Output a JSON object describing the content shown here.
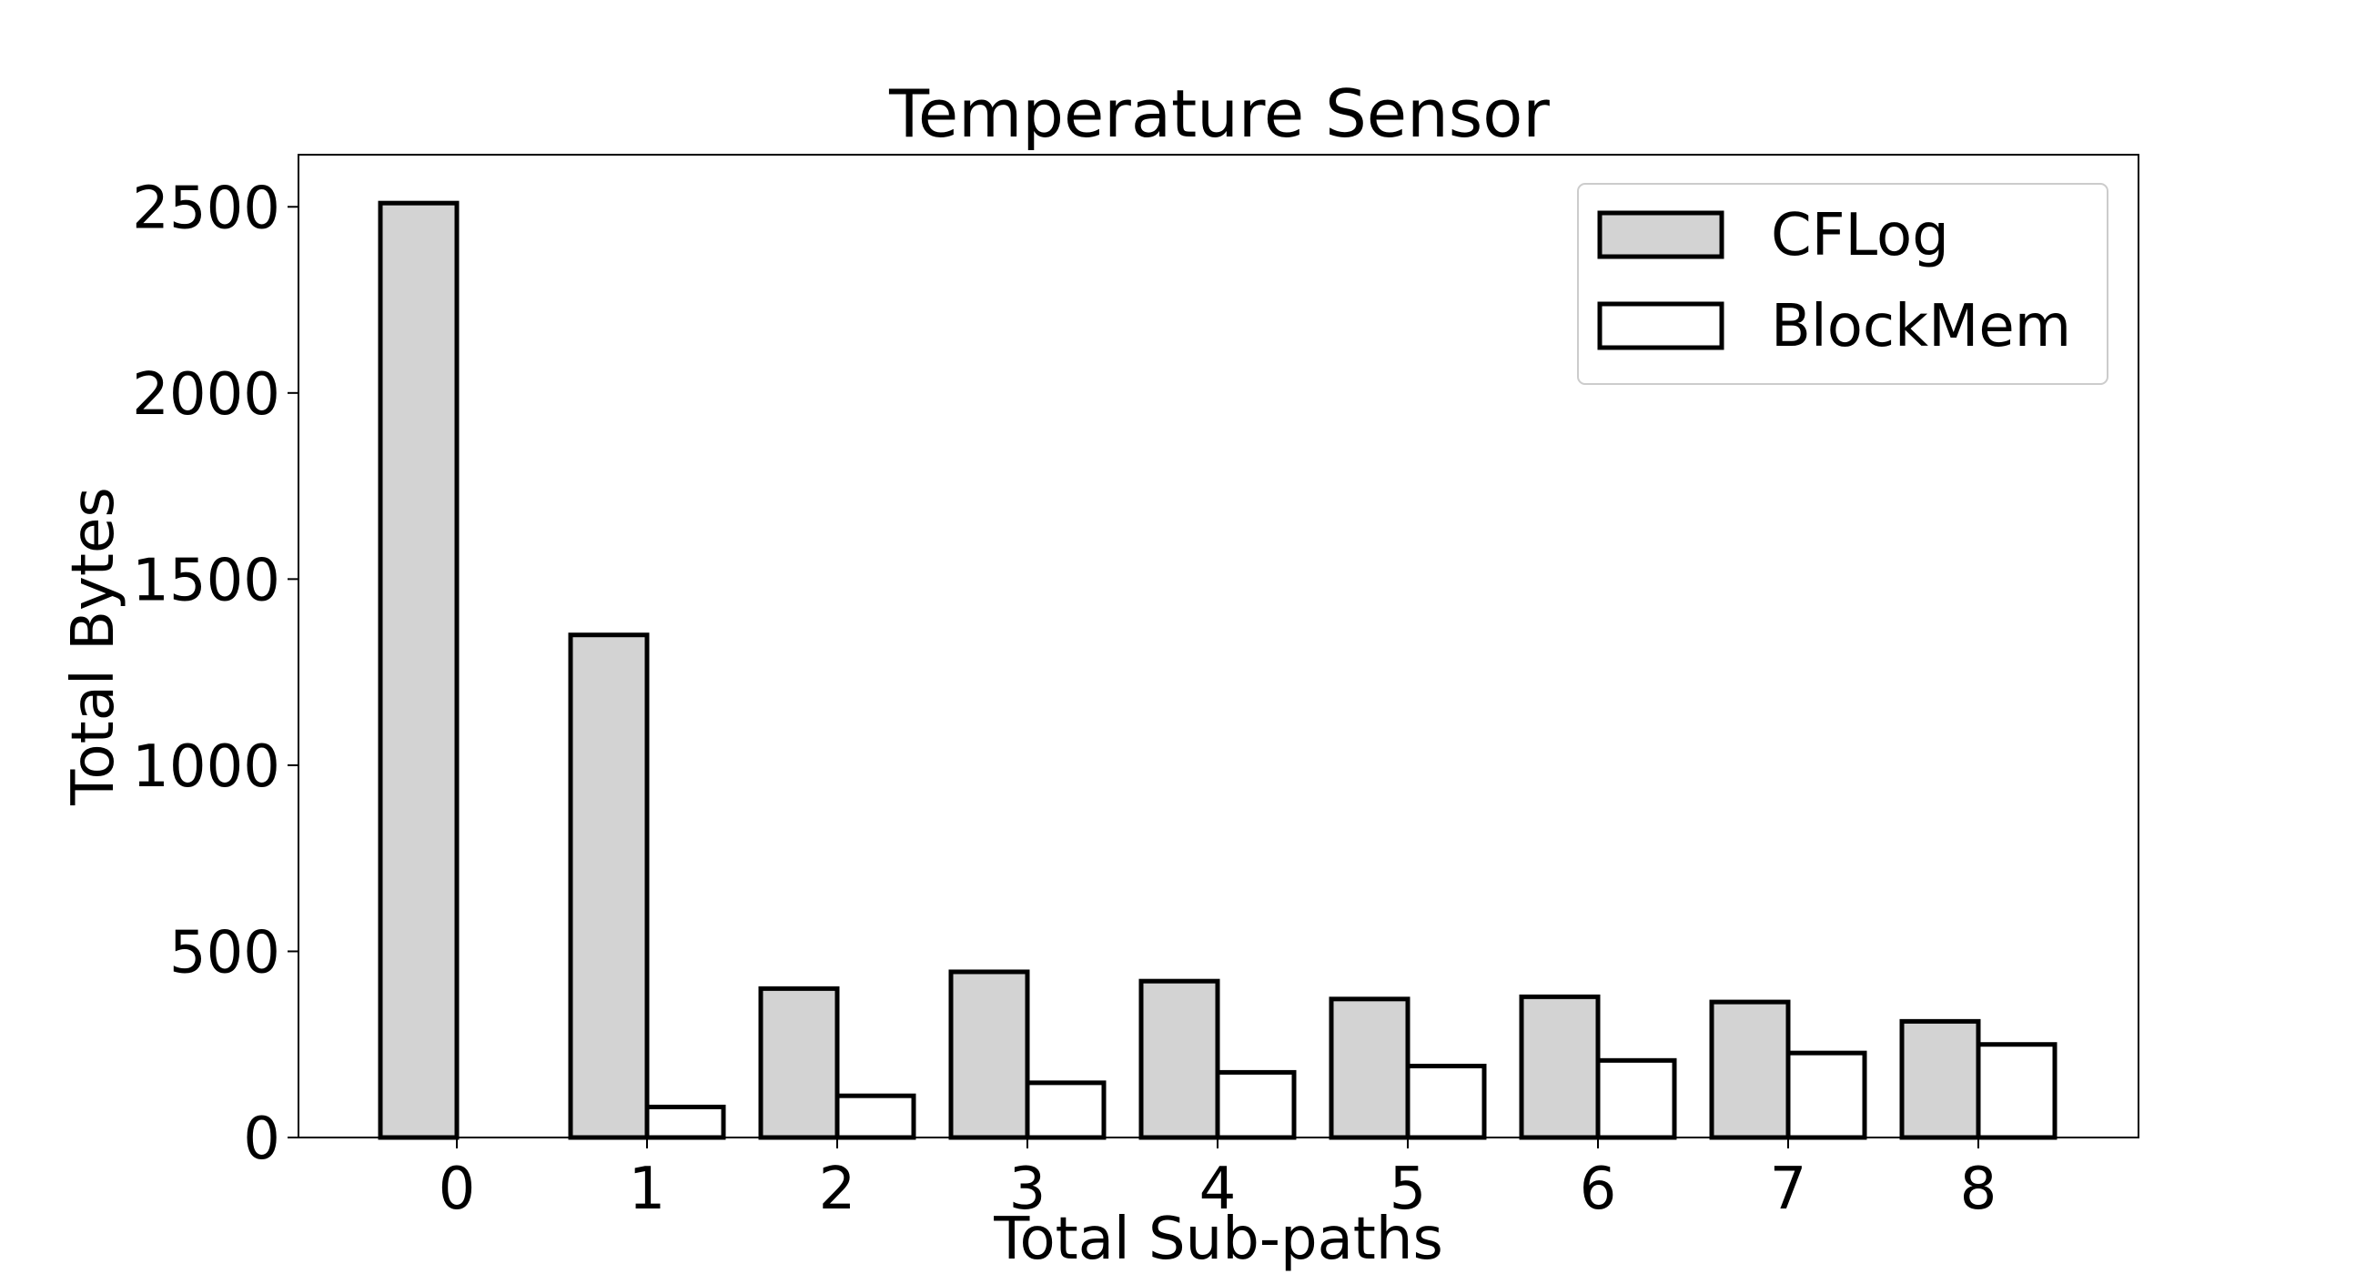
{
  "chart_data": {
    "type": "bar",
    "title": "Temperature Sensor",
    "xlabel": "Total Sub-paths",
    "ylabel": "Total Bytes",
    "categories": [
      "0",
      "1",
      "2",
      "3",
      "4",
      "5",
      "6",
      "7",
      "8"
    ],
    "series": [
      {
        "name": "CFLog",
        "values": [
          2510,
          1350,
          400,
          445,
          420,
          372,
          378,
          364,
          312
        ],
        "fill": "#d3d3d3"
      },
      {
        "name": "BlockMem",
        "values": [
          0,
          82,
          112,
          147,
          175,
          192,
          207,
          227,
          250
        ],
        "fill": "#ffffff"
      }
    ],
    "ylim": [
      0,
      2640
    ],
    "yticks": [
      "0",
      "500",
      "1000",
      "1500",
      "2000",
      "2500"
    ],
    "grid": false,
    "legend_position": "top-right",
    "edge_color": "#000000"
  }
}
